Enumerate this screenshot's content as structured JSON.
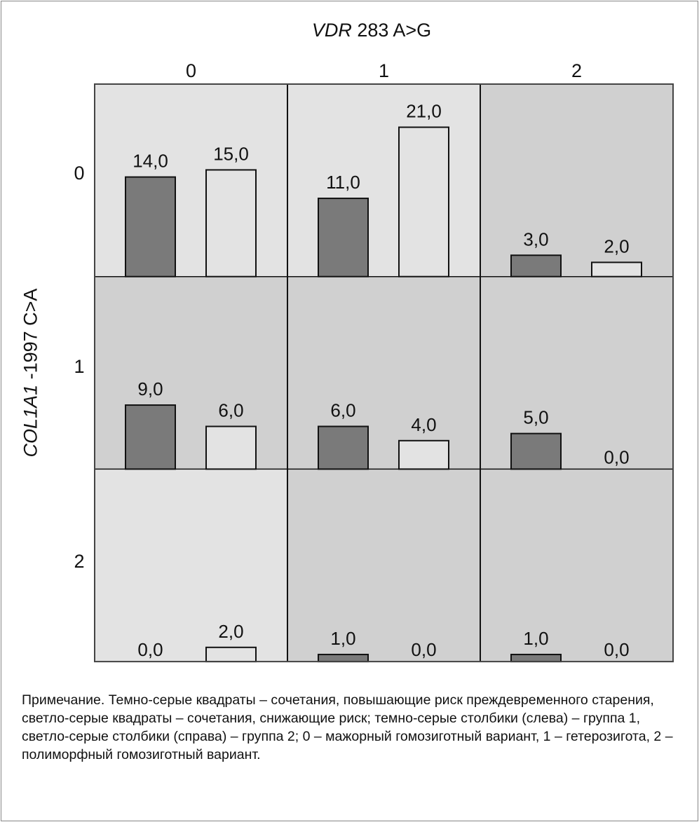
{
  "chart_data": {
    "type": "bar",
    "title_italic": "VDR",
    "title_rest": " 283 A>G",
    "ylabel_italic": "COL1A1",
    "ylabel_rest": " -1997 C>A",
    "col_ticks": [
      "0",
      "1",
      "2"
    ],
    "row_ticks": [
      "0",
      "1",
      "2"
    ],
    "series": [
      {
        "name": "группа 1",
        "color": "#7a7a7a"
      },
      {
        "name": "группа 2",
        "color": "#e3e3e3"
      }
    ],
    "cells": [
      [
        {
          "risk": "low",
          "g1": 14.0,
          "g2": 15.0,
          "l1": "14,0",
          "l2": "15,0"
        },
        {
          "risk": "low",
          "g1": 11.0,
          "g2": 21.0,
          "l1": "11,0",
          "l2": "21,0"
        },
        {
          "risk": "high",
          "g1": 3.0,
          "g2": 2.0,
          "l1": "3,0",
          "l2": "2,0"
        }
      ],
      [
        {
          "risk": "high",
          "g1": 9.0,
          "g2": 6.0,
          "l1": "9,0",
          "l2": "6,0"
        },
        {
          "risk": "high",
          "g1": 6.0,
          "g2": 4.0,
          "l1": "6,0",
          "l2": "4,0"
        },
        {
          "risk": "high",
          "g1": 5.0,
          "g2": 0.0,
          "l1": "5,0",
          "l2": "0,0"
        }
      ],
      [
        {
          "risk": "low",
          "g1": 0.0,
          "g2": 2.0,
          "l1": "0,0",
          "l2": "2,0"
        },
        {
          "risk": "high",
          "g1": 1.0,
          "g2": 0.0,
          "l1": "1,0",
          "l2": "0,0"
        },
        {
          "risk": "high",
          "g1": 1.0,
          "g2": 0.0,
          "l1": "1,0",
          "l2": "0,0"
        }
      ]
    ],
    "ylim": [
      0,
      27
    ],
    "colors": {
      "high_risk_cell": "#d0d0d0",
      "low_risk_cell": "#e3e3e3"
    }
  },
  "note": "Примечание. Темно-серые квадраты – сочетания, повышающие риск преждевременного старения, светло-серые квадраты – сочетания, снижающие риск; темно-серые столбики (слева) – группа 1, светло-серые столбики (справа) – группа 2; 0 – мажорный гомозиготный вариант, 1 – гетерозигота, 2 – полиморфный гомозиготный вариант."
}
